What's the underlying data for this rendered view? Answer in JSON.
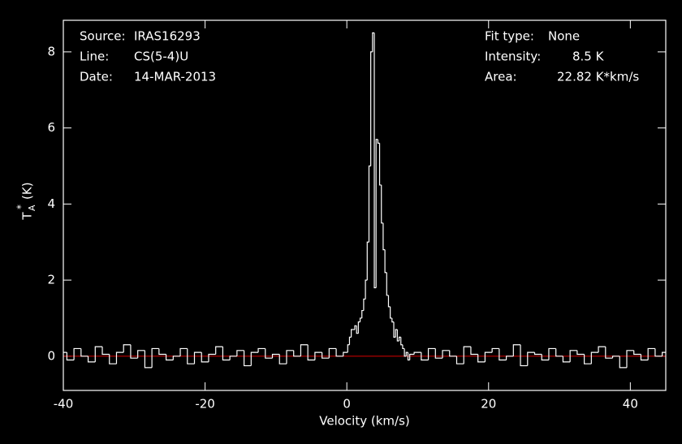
{
  "chart_data": {
    "type": "step",
    "x_label": "Velocity (km/s)",
    "y_label": {
      "symbol": "T",
      "superscript": "*",
      "subscript": "A",
      "unit": "(K)"
    },
    "info_left": [
      {
        "label": "Source:",
        "value": "IRAS16293"
      },
      {
        "label": "Line:",
        "value": "CS(5-4)U"
      },
      {
        "label": "Date:",
        "value": "14-MAR-2013"
      }
    ],
    "info_right": [
      {
        "label": "Fit type:",
        "value": "None"
      },
      {
        "label": "Intensity:",
        "value": "8.5 K"
      },
      {
        "label": "Area:",
        "value": "22.82 K*km/s"
      }
    ],
    "xlim": [
      -40,
      45
    ],
    "ylim": [
      -0.9,
      8.83
    ],
    "xticks": [
      -40,
      -20,
      0,
      20,
      40
    ],
    "yticks": [
      0,
      2,
      4,
      6,
      8
    ],
    "baseline": {
      "value": 0,
      "color": "#c00000"
    },
    "series": [
      {
        "color": "#ffffff",
        "x": [
          -40,
          -39,
          -38,
          -37,
          -36,
          -35,
          -34,
          -33,
          -32,
          -31,
          -30,
          -29,
          -28,
          -27,
          -26,
          -25,
          -24,
          -23,
          -22,
          -21,
          -20,
          -19,
          -18,
          -17,
          -16,
          -15,
          -14,
          -13,
          -12,
          -11,
          -10,
          -9,
          -8,
          -7,
          -6,
          -5,
          -4,
          -3,
          -2,
          -1,
          0,
          0.25,
          0.5,
          0.75,
          1,
          1.25,
          1.5,
          1.75,
          2,
          2.25,
          2.5,
          2.75,
          3,
          3.25,
          3.5,
          3.75,
          4,
          4.25,
          4.5,
          4.75,
          5,
          5.25,
          5.5,
          5.75,
          6,
          6.25,
          6.5,
          6.75,
          7,
          7.25,
          7.5,
          7.75,
          8,
          8.25,
          8.5,
          8.75,
          9,
          10,
          11,
          12,
          13,
          14,
          15,
          16,
          17,
          18,
          19,
          20,
          21,
          22,
          23,
          24,
          25,
          26,
          27,
          28,
          29,
          30,
          31,
          32,
          33,
          34,
          35,
          36,
          37,
          38,
          39,
          40,
          41,
          42,
          43,
          44,
          45
        ],
        "values": [
          0.1,
          -0.1,
          0.2,
          0.0,
          -0.15,
          0.25,
          0.05,
          -0.2,
          0.1,
          0.3,
          -0.05,
          0.15,
          -0.3,
          0.2,
          0.05,
          -0.1,
          0.0,
          0.2,
          -0.2,
          0.1,
          -0.15,
          0.05,
          0.25,
          -0.1,
          0.0,
          0.15,
          -0.25,
          0.1,
          0.2,
          -0.05,
          0.05,
          -0.2,
          0.15,
          0.0,
          0.3,
          -0.1,
          0.1,
          -0.05,
          0.2,
          0.0,
          0.1,
          0.3,
          0.5,
          0.7,
          0.7,
          0.8,
          0.6,
          0.9,
          1.0,
          1.2,
          1.5,
          2.0,
          3.0,
          5.0,
          8.0,
          8.5,
          1.8,
          5.7,
          5.6,
          4.5,
          3.5,
          2.8,
          2.2,
          1.6,
          1.3,
          1.0,
          0.9,
          0.5,
          0.7,
          0.4,
          0.5,
          0.3,
          0.2,
          0.0,
          0.1,
          -0.1,
          0.05,
          0.1,
          -0.1,
          0.2,
          -0.05,
          0.15,
          0.0,
          -0.2,
          0.25,
          0.05,
          -0.15,
          0.1,
          0.2,
          -0.1,
          0.0,
          0.3,
          -0.25,
          0.1,
          0.05,
          -0.1,
          0.2,
          0.0,
          -0.15,
          0.15,
          0.05,
          -0.2,
          0.1,
          0.25,
          -0.05,
          0.0,
          -0.3,
          0.15,
          0.05,
          -0.1,
          0.2,
          0.0,
          0.1
        ]
      }
    ]
  }
}
